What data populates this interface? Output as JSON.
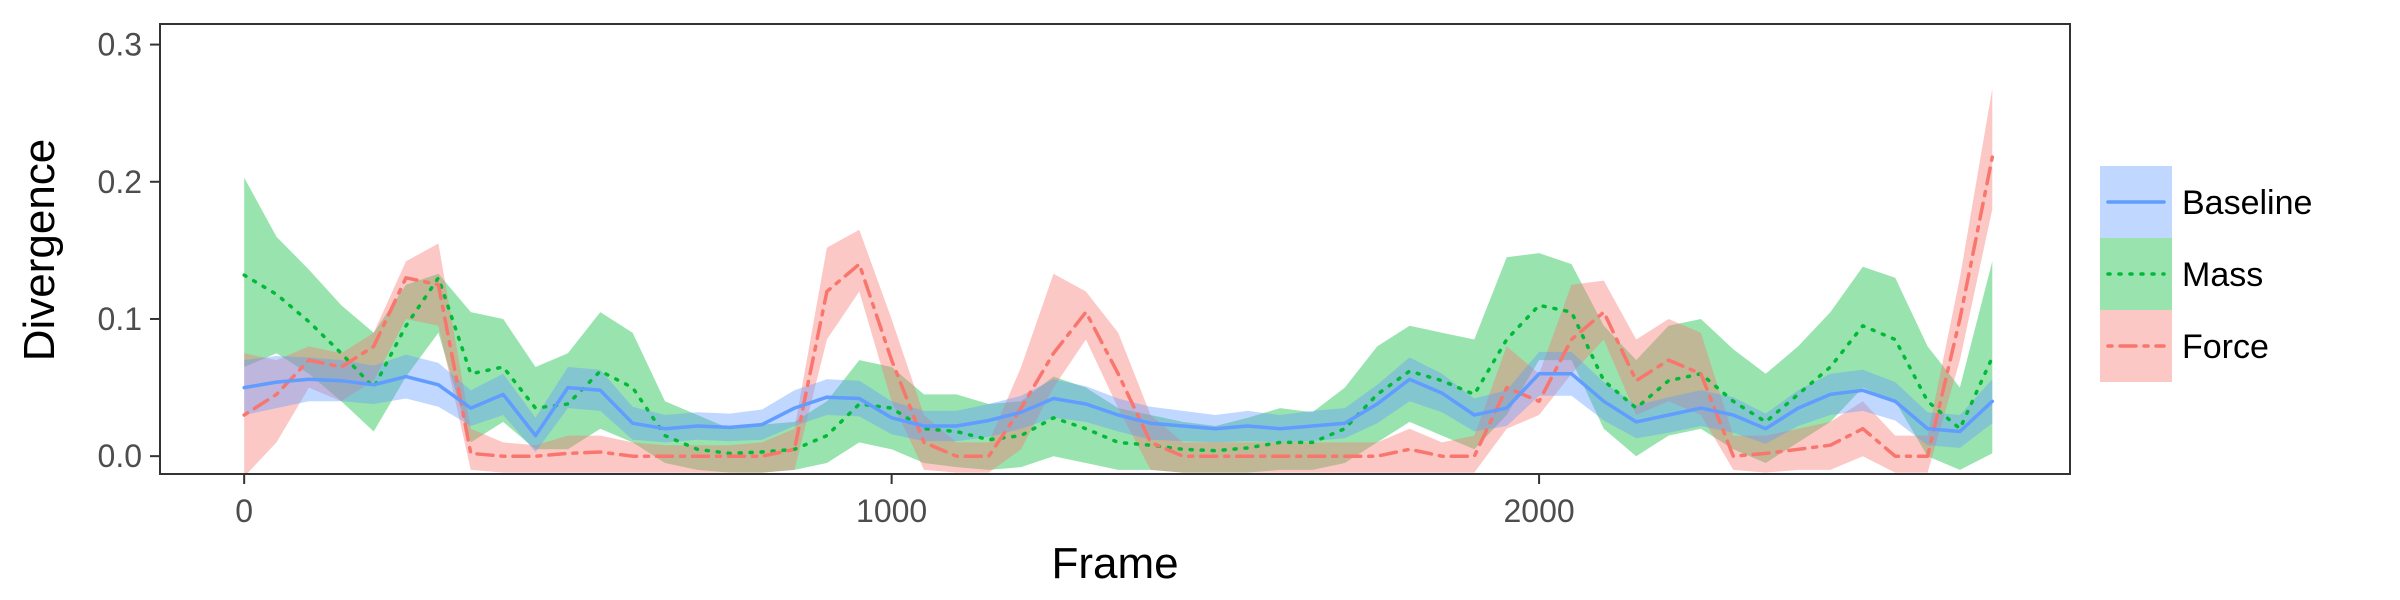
{
  "chart_data": {
    "type": "line",
    "xlabel": "Frame",
    "ylabel": "Divergence",
    "xlim": [
      -130,
      2820
    ],
    "ylim": [
      -0.013,
      0.315
    ],
    "x_ticks": [
      0,
      1000,
      2000
    ],
    "y_ticks": [
      0.0,
      0.1,
      0.2,
      0.3
    ],
    "x_tick_labels": [
      "0",
      "1000",
      "2000"
    ],
    "y_tick_labels": [
      "0.0",
      "0.1",
      "0.2",
      "0.3"
    ],
    "grid": false,
    "legend_position": "right",
    "x": [
      0,
      50,
      100,
      150,
      200,
      250,
      300,
      350,
      400,
      450,
      500,
      550,
      600,
      650,
      700,
      750,
      800,
      850,
      900,
      950,
      1000,
      1050,
      1100,
      1150,
      1200,
      1250,
      1300,
      1350,
      1400,
      1450,
      1500,
      1550,
      1600,
      1650,
      1700,
      1750,
      1800,
      1850,
      1900,
      1950,
      2000,
      2050,
      2100,
      2150,
      2200,
      2250,
      2300,
      2350,
      2400,
      2450,
      2500,
      2550,
      2600,
      2650,
      2700
    ],
    "series": [
      {
        "name": "Baseline",
        "color": "#619CFF",
        "fill": "#619CFF",
        "linestyle": "solid",
        "values": [
          0.05,
          0.054,
          0.056,
          0.055,
          0.052,
          0.058,
          0.052,
          0.035,
          0.045,
          0.015,
          0.05,
          0.048,
          0.024,
          0.02,
          0.022,
          0.021,
          0.023,
          0.035,
          0.043,
          0.042,
          0.028,
          0.022,
          0.022,
          0.026,
          0.032,
          0.042,
          0.038,
          0.03,
          0.024,
          0.022,
          0.02,
          0.022,
          0.02,
          0.022,
          0.024,
          0.038,
          0.056,
          0.046,
          0.03,
          0.035,
          0.06,
          0.06,
          0.04,
          0.025,
          0.03,
          0.035,
          0.03,
          0.02,
          0.035,
          0.045,
          0.048,
          0.04,
          0.02,
          0.018,
          0.04
        ],
        "lower": [
          0.03,
          0.035,
          0.04,
          0.04,
          0.038,
          0.042,
          0.036,
          0.022,
          0.03,
          0.003,
          0.035,
          0.033,
          0.012,
          0.01,
          0.012,
          0.011,
          0.012,
          0.022,
          0.03,
          0.029,
          0.016,
          0.011,
          0.011,
          0.014,
          0.02,
          0.028,
          0.025,
          0.018,
          0.012,
          0.011,
          0.01,
          0.011,
          0.01,
          0.011,
          0.013,
          0.024,
          0.04,
          0.032,
          0.018,
          0.022,
          0.044,
          0.044,
          0.026,
          0.013,
          0.017,
          0.022,
          0.017,
          0.009,
          0.022,
          0.03,
          0.033,
          0.026,
          0.008,
          0.006,
          0.024
        ],
        "upper": [
          0.07,
          0.073,
          0.072,
          0.07,
          0.066,
          0.074,
          0.068,
          0.048,
          0.06,
          0.028,
          0.065,
          0.063,
          0.036,
          0.03,
          0.032,
          0.031,
          0.034,
          0.048,
          0.056,
          0.055,
          0.04,
          0.033,
          0.033,
          0.038,
          0.044,
          0.056,
          0.051,
          0.042,
          0.036,
          0.033,
          0.03,
          0.033,
          0.03,
          0.033,
          0.035,
          0.052,
          0.072,
          0.06,
          0.042,
          0.048,
          0.076,
          0.076,
          0.054,
          0.037,
          0.043,
          0.048,
          0.043,
          0.031,
          0.048,
          0.06,
          0.063,
          0.054,
          0.032,
          0.03,
          0.056
        ]
      },
      {
        "name": "Mass",
        "color": "#00BA38",
        "fill": "#00BA38",
        "linestyle": "dotted",
        "values": [
          0.132,
          0.118,
          0.098,
          0.075,
          0.05,
          0.095,
          0.13,
          0.06,
          0.065,
          0.035,
          0.038,
          0.062,
          0.05,
          0.015,
          0.005,
          0.002,
          0.003,
          0.005,
          0.015,
          0.038,
          0.035,
          0.02,
          0.018,
          0.012,
          0.015,
          0.028,
          0.02,
          0.01,
          0.008,
          0.005,
          0.004,
          0.006,
          0.01,
          0.01,
          0.02,
          0.045,
          0.062,
          0.055,
          0.045,
          0.085,
          0.11,
          0.105,
          0.055,
          0.035,
          0.055,
          0.06,
          0.04,
          0.025,
          0.045,
          0.065,
          0.095,
          0.085,
          0.04,
          0.02,
          0.072
        ],
        "lower": [
          0.065,
          0.075,
          0.06,
          0.04,
          0.018,
          0.058,
          0.09,
          0.01,
          0.025,
          0.005,
          0.005,
          0.02,
          0.01,
          -0.005,
          -0.01,
          -0.012,
          -0.012,
          -0.01,
          -0.005,
          0.01,
          0.005,
          -0.005,
          -0.008,
          -0.01,
          -0.008,
          0.0,
          -0.005,
          -0.01,
          -0.01,
          -0.012,
          -0.012,
          -0.012,
          -0.01,
          -0.01,
          -0.005,
          0.01,
          0.025,
          0.015,
          0.005,
          0.03,
          0.07,
          0.07,
          0.02,
          0.0,
          0.015,
          0.02,
          0.005,
          -0.005,
          0.01,
          0.025,
          0.05,
          0.04,
          0.0,
          -0.01,
          0.002
        ],
        "upper": [
          0.203,
          0.16,
          0.136,
          0.11,
          0.09,
          0.125,
          0.133,
          0.105,
          0.1,
          0.065,
          0.075,
          0.105,
          0.09,
          0.04,
          0.03,
          0.02,
          0.023,
          0.025,
          0.04,
          0.07,
          0.065,
          0.045,
          0.045,
          0.038,
          0.04,
          0.058,
          0.05,
          0.035,
          0.03,
          0.025,
          0.022,
          0.028,
          0.035,
          0.032,
          0.05,
          0.08,
          0.095,
          0.09,
          0.085,
          0.145,
          0.148,
          0.14,
          0.095,
          0.07,
          0.095,
          0.1,
          0.078,
          0.06,
          0.08,
          0.105,
          0.138,
          0.13,
          0.08,
          0.05,
          0.142
        ]
      },
      {
        "name": "Force",
        "color": "#F8766D",
        "fill": "#F8766D",
        "linestyle": "dotdash",
        "values": [
          0.03,
          0.045,
          0.07,
          0.065,
          0.08,
          0.13,
          0.125,
          0.002,
          0.0,
          0.0,
          0.002,
          0.003,
          0.0,
          0.0,
          0.0,
          0.0,
          0.0,
          0.005,
          0.12,
          0.14,
          0.07,
          0.01,
          0.0,
          0.0,
          0.035,
          0.075,
          0.105,
          0.06,
          0.01,
          0.0,
          0.0,
          0.0,
          0.0,
          0.0,
          0.0,
          0.0,
          0.005,
          0.0,
          0.0,
          0.05,
          0.04,
          0.085,
          0.105,
          0.055,
          0.07,
          0.06,
          0.0,
          0.002,
          0.005,
          0.008,
          0.02,
          0.0,
          0.0,
          0.1,
          0.218
        ],
        "lower": [
          -0.015,
          0.01,
          0.05,
          0.04,
          0.055,
          0.1,
          0.095,
          -0.01,
          -0.012,
          -0.012,
          -0.012,
          -0.012,
          -0.012,
          -0.012,
          -0.012,
          -0.012,
          -0.012,
          -0.01,
          0.085,
          0.12,
          0.04,
          -0.01,
          -0.012,
          -0.012,
          0.005,
          0.05,
          0.085,
          0.035,
          -0.01,
          -0.012,
          -0.012,
          -0.012,
          -0.012,
          -0.012,
          -0.012,
          -0.012,
          -0.012,
          -0.012,
          -0.012,
          0.02,
          0.03,
          0.06,
          0.085,
          0.03,
          0.04,
          0.03,
          -0.01,
          -0.012,
          -0.01,
          -0.01,
          0.0,
          -0.012,
          -0.012,
          0.07,
          0.18
        ],
        "upper": [
          0.075,
          0.07,
          0.08,
          0.075,
          0.09,
          0.142,
          0.155,
          0.02,
          0.01,
          0.008,
          0.015,
          0.015,
          0.01,
          0.008,
          0.008,
          0.008,
          0.01,
          0.02,
          0.152,
          0.165,
          0.1,
          0.03,
          0.01,
          0.01,
          0.065,
          0.133,
          0.12,
          0.09,
          0.03,
          0.01,
          0.01,
          0.01,
          0.01,
          0.01,
          0.01,
          0.01,
          0.02,
          0.01,
          0.015,
          0.08,
          0.06,
          0.125,
          0.128,
          0.085,
          0.1,
          0.09,
          0.015,
          0.015,
          0.02,
          0.025,
          0.04,
          0.015,
          0.015,
          0.13,
          0.268
        ]
      }
    ]
  }
}
